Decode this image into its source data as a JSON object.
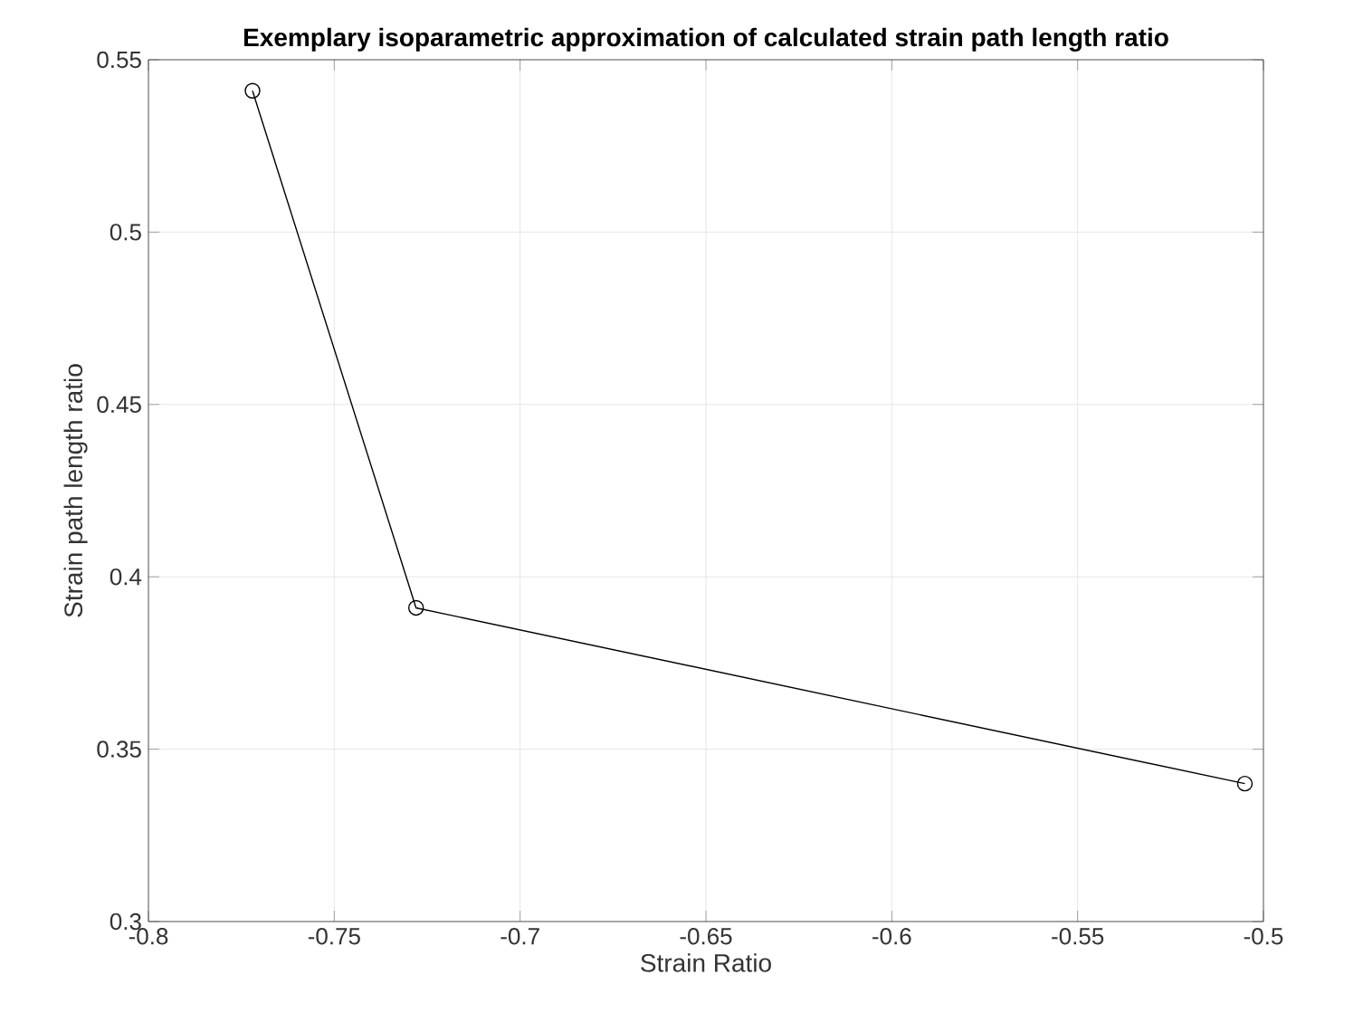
{
  "chart_data": {
    "type": "line",
    "title": "Exemplary isoparametric approximation of calculated strain path length ratio",
    "xlabel": "Strain Ratio",
    "ylabel": "Strain path length ratio",
    "x": [
      -0.772,
      -0.728,
      -0.505
    ],
    "series": [
      {
        "color": "#000000",
        "values": [
          0.541,
          0.391,
          0.34
        ]
      }
    ],
    "xlim": [
      -0.8,
      -0.5
    ],
    "xticks": [
      -0.8,
      -0.75,
      -0.7,
      -0.65,
      -0.6,
      -0.55,
      -0.5
    ],
    "ylim": [
      0.3,
      0.55
    ],
    "yticks": [
      0.3,
      0.35,
      0.4,
      0.45,
      0.5,
      0.55
    ],
    "grid": true,
    "marker": "circle",
    "line_style": "solid"
  }
}
